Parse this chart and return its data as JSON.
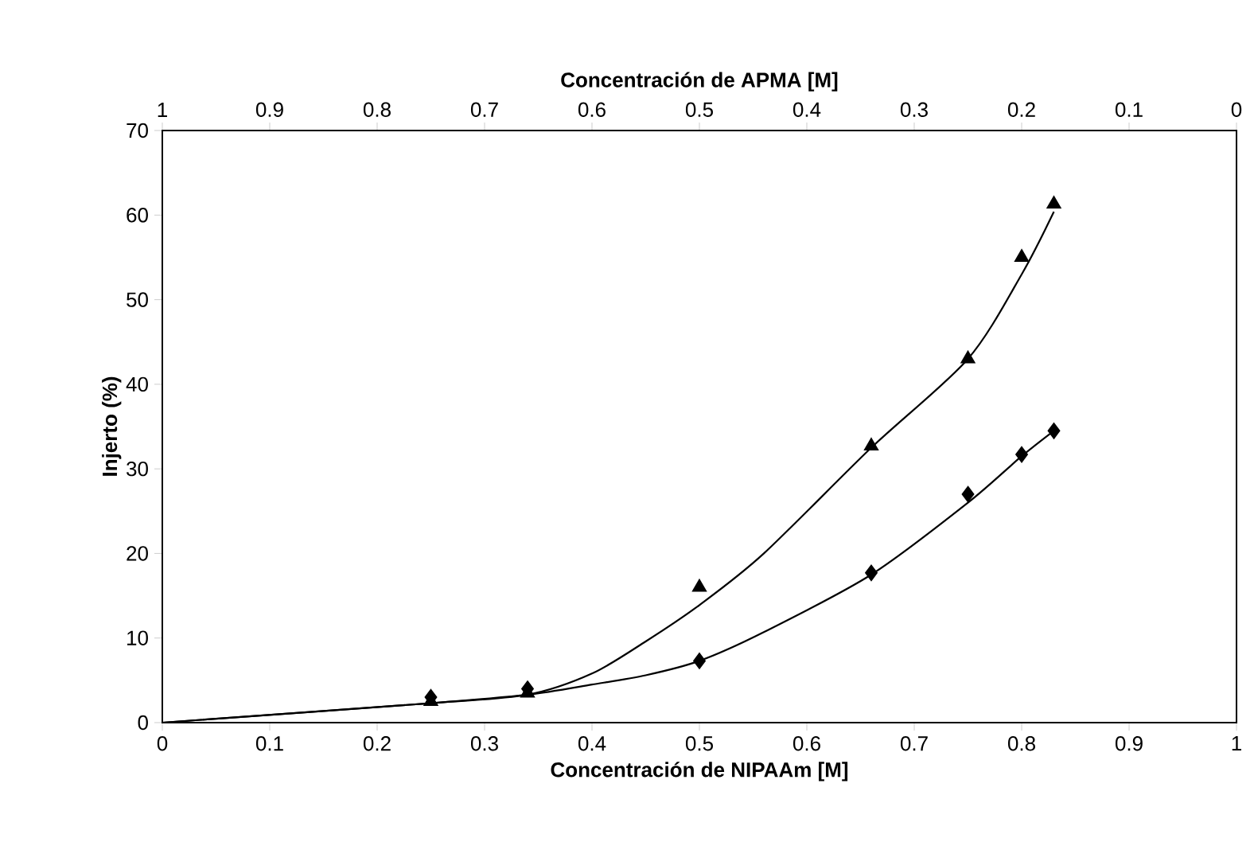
{
  "chart_data": {
    "type": "scatter",
    "xlabel": "Concentración de NIPAAm [M]",
    "x2label": "Concentración de APMA [M]",
    "ylabel": "Injerto (%)",
    "xlim": [
      0,
      1
    ],
    "xticks": [
      0,
      0.1,
      0.2,
      0.3,
      0.4,
      0.5,
      0.6,
      0.7,
      0.8,
      0.9,
      1
    ],
    "x2lim": [
      1,
      0
    ],
    "x2ticks": [
      1,
      0.9,
      0.8,
      0.7,
      0.6,
      0.5,
      0.4,
      0.3,
      0.2,
      0.1,
      0
    ],
    "ylim": [
      0,
      70
    ],
    "yticks": [
      0,
      10,
      20,
      30,
      40,
      50,
      60,
      70
    ],
    "grid": false,
    "series": [
      {
        "marker": "triangle",
        "color": "#000000",
        "x": [
          0.25,
          0.34,
          0.5,
          0.66,
          0.75,
          0.8,
          0.83
        ],
        "values": [
          2.5,
          3.5,
          16,
          32.7,
          43,
          55,
          61.3
        ]
      },
      {
        "marker": "diamond",
        "color": "#000000",
        "x": [
          0.25,
          0.34,
          0.5,
          0.66,
          0.75,
          0.8,
          0.83
        ],
        "values": [
          3,
          4,
          7.3,
          17.7,
          27,
          31.7,
          34.5
        ]
      },
      {
        "type": "line",
        "marker": "none",
        "color": "#000000",
        "x": [
          0,
          0.25,
          0.34,
          0.4,
          0.45,
          0.5,
          0.56,
          0.66,
          0.75,
          0.8,
          0.83
        ],
        "values": [
          0,
          2.3,
          3.3,
          5.8,
          9.6,
          13.9,
          20,
          32.5,
          43,
          53,
          60.4
        ]
      },
      {
        "type": "line",
        "marker": "none",
        "color": "#000000",
        "x": [
          0,
          0.25,
          0.34,
          0.4,
          0.45,
          0.5,
          0.56,
          0.66,
          0.75,
          0.8,
          0.83
        ],
        "values": [
          0,
          2.3,
          3.3,
          4.5,
          5.6,
          7.3,
          10.7,
          17.5,
          26,
          31.5,
          34.5
        ]
      }
    ]
  }
}
